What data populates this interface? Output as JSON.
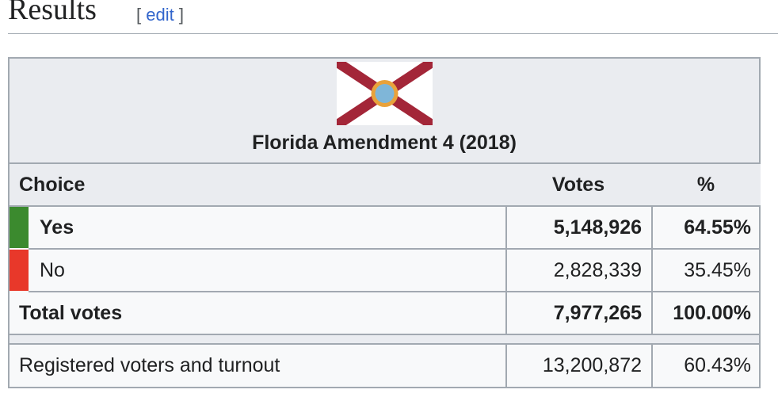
{
  "heading": {
    "title": "Results",
    "edit_open": "[",
    "edit": "edit",
    "edit_close": "]"
  },
  "table": {
    "caption": "Florida Amendment 4 (2018)",
    "header": [
      "Choice",
      "Votes",
      "%"
    ],
    "rows": [
      [
        "Yes",
        "5,148,926",
        "64.55%"
      ],
      [
        "No",
        "2,828,339",
        "35.45%"
      ],
      [
        "Total votes",
        "7,977,265",
        "100.00%"
      ]
    ],
    "turnout": [
      "Registered voters and turnout",
      "13,200,872",
      "60.43%"
    ]
  }
}
